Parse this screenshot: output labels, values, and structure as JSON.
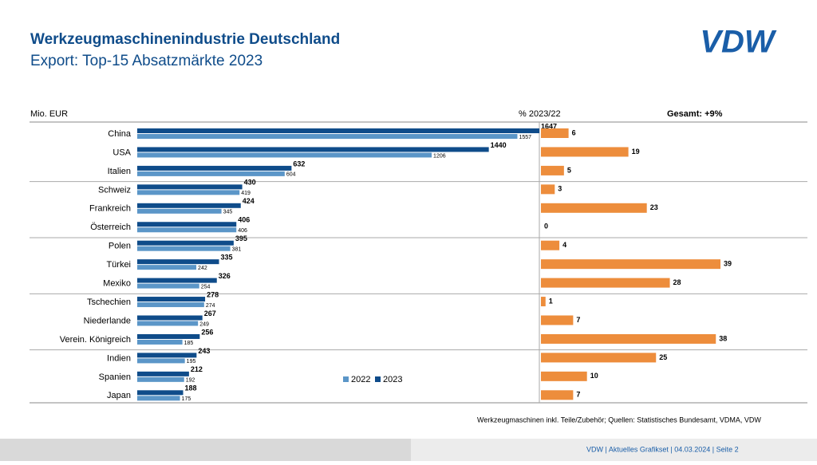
{
  "header": {
    "title": "Werkzeugmaschinenindustrie Deutschland",
    "subtitle": "Export: Top-15 Absatzmärkte 2023",
    "logo": "VDW"
  },
  "chart_data": {
    "type": "bar",
    "orientation": "horizontal",
    "value_label": "Mio. EUR",
    "total": "Gesamt: +9%",
    "categories": [
      "China",
      "USA",
      "Italien",
      "Schweiz",
      "Frankreich",
      "Österreich",
      "Polen",
      "Türkei",
      "Mexiko",
      "Tschechien",
      "Niederlande",
      "Verein. Königreich",
      "Indien",
      "Spanien",
      "Japan"
    ],
    "series": [
      {
        "name": "2022",
        "color": "#5b96c8",
        "values": [
          1557,
          1206,
          604,
          419,
          345,
          406,
          381,
          242,
          254,
          274,
          249,
          185,
          195,
          192,
          175
        ]
      },
      {
        "name": "2023",
        "color": "#0f4c8a",
        "values": [
          1647,
          1440,
          632,
          430,
          424,
          406,
          395,
          335,
          326,
          278,
          267,
          256,
          243,
          212,
          188
        ]
      },
      {
        "name": "% 2023/22",
        "color": "#ed8d3c",
        "values": [
          6,
          19,
          5,
          3,
          23,
          0,
          4,
          39,
          28,
          1,
          7,
          38,
          25,
          10,
          7
        ]
      }
    ]
  },
  "footnote": "Werkzeugmaschinen inkl. Teile/Zubehör;  Quellen: Statistisches Bundesamt, VDMA, VDW",
  "footer": "VDW  |  Aktuelles Grafikset |  04.03.2024   |  Seite  2"
}
